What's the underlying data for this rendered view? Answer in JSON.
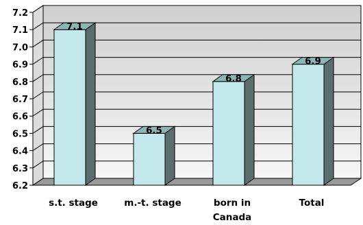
{
  "chart_data": {
    "type": "bar",
    "categories": [
      [
        "s.t. stage"
      ],
      [
        "m.-t. stage"
      ],
      [
        "born in",
        "Canada"
      ],
      [
        "Total"
      ]
    ],
    "values": [
      7.1,
      6.5,
      6.8,
      6.9
    ],
    "data_labels": [
      "7.1",
      "6.5",
      "6.8",
      "6.9"
    ],
    "y_ticks": [
      "6.2",
      "6.3",
      "6.4",
      "6.5",
      "6.6",
      "6.7",
      "6.8",
      "6.9",
      "7.0",
      "7.1",
      "7.2"
    ],
    "ylim": [
      6.2,
      7.2
    ],
    "title": "",
    "xlabel": "",
    "ylabel": "",
    "grid": true,
    "legend": "none",
    "colors": {
      "bar_front": "#c2e8ec",
      "bar_side": "#5a6e6e",
      "bar_top": "#8fb4b6",
      "wall": "#e6e6e6",
      "floor": "#9a9a9a",
      "grid": "#000000"
    }
  }
}
